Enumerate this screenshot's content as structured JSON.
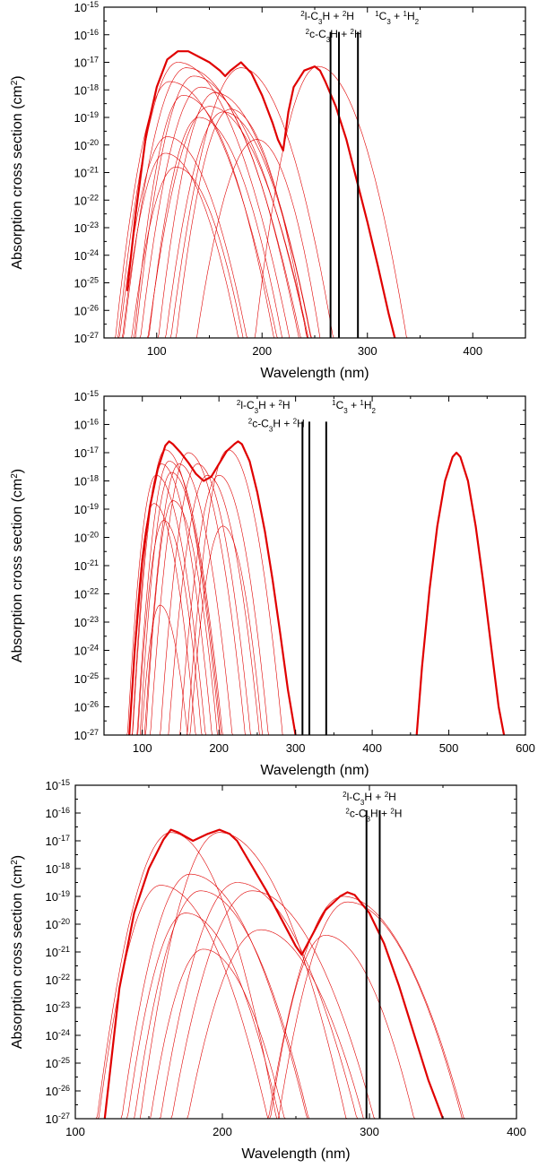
{
  "chart_data": [
    {
      "type": "line",
      "panel": 1,
      "title": "",
      "xlabel": "Wavelength (nm)",
      "ylabel": "Absorption cross section (cm2)",
      "ylabel_parts": {
        "main": "Absorption cross section (cm",
        "sup": "2",
        "tail": ")"
      },
      "xlim": [
        50,
        450
      ],
      "xticks": [
        100,
        200,
        300,
        400
      ],
      "ylim_log10": [
        -27,
        -15
      ],
      "yscale": "log",
      "color": "#e00000",
      "envelope": {
        "name": "total",
        "x": [
          72,
          80,
          90,
          100,
          110,
          120,
          130,
          140,
          150,
          160,
          165,
          170,
          180,
          190,
          200,
          210,
          215,
          220,
          225,
          230,
          240,
          250,
          255,
          260,
          270,
          280,
          290,
          300,
          310,
          320,
          326
        ],
        "log10": [
          -25.3,
          -22.5,
          -19.6,
          -17.9,
          -16.9,
          -16.6,
          -16.6,
          -16.8,
          -17.0,
          -17.3,
          -17.5,
          -17.3,
          -17.0,
          -17.4,
          -18.2,
          -19.2,
          -19.8,
          -20.2,
          -18.8,
          -17.9,
          -17.3,
          -17.15,
          -17.3,
          -17.7,
          -18.6,
          -19.8,
          -21.3,
          -22.8,
          -24.4,
          -26.1,
          -27
        ]
      },
      "components": [
        {
          "peak": 112,
          "logpeak": -17.7,
          "wl": 30,
          "wr": 60
        },
        {
          "peak": 120,
          "logpeak": -17.0,
          "wl": 32,
          "wr": 60
        },
        {
          "peak": 128,
          "logpeak": -17.2,
          "wl": 34,
          "wr": 62
        },
        {
          "peak": 135,
          "logpeak": -17.5,
          "wl": 32,
          "wr": 58
        },
        {
          "peak": 142,
          "logpeak": -17.9,
          "wl": 34,
          "wr": 60
        },
        {
          "peak": 150,
          "logpeak": -18.6,
          "wl": 36,
          "wr": 58
        },
        {
          "peak": 155,
          "logpeak": -18.1,
          "wl": 32,
          "wr": 55
        },
        {
          "peak": 163,
          "logpeak": -18.8,
          "wl": 34,
          "wr": 52
        },
        {
          "peak": 180,
          "logpeak": -17.2,
          "wl": 38,
          "wr": 50
        },
        {
          "peak": 110,
          "logpeak": -19.7,
          "wl": 30,
          "wr": 50
        },
        {
          "peak": 108,
          "logpeak": -20.3,
          "wl": 28,
          "wr": 48
        },
        {
          "peak": 118,
          "logpeak": -20.8,
          "wl": 30,
          "wr": 46
        },
        {
          "peak": 195,
          "logpeak": -19.8,
          "wl": 38,
          "wr": 40
        },
        {
          "peak": 170,
          "logpeak": -18.7,
          "wl": 32,
          "wr": 45
        },
        {
          "peak": 140,
          "logpeak": -19.0,
          "wl": 30,
          "wr": 50
        },
        {
          "peak": 125,
          "logpeak": -18.2,
          "wl": 28,
          "wr": 52
        },
        {
          "peak": 253,
          "logpeak": -17.15,
          "wl": 34,
          "wr": 48
        }
      ],
      "vlines": [
        265,
        273,
        291
      ],
      "annotations": [
        {
          "text_parts": [
            [
              "2",
              1
            ],
            [
              "l-C",
              0
            ],
            [
              "3",
              2
            ],
            [
              "H + ",
              0
            ],
            [
              "2",
              1
            ],
            [
              "H",
              0
            ]
          ],
          "label": "2l-C3H + 2H",
          "x": 262,
          "log10": -15.45
        },
        {
          "text_parts": [
            [
              "2",
              1
            ],
            [
              "c-C",
              0
            ],
            [
              "3",
              2
            ],
            [
              "H + ",
              0
            ],
            [
              "2",
              1
            ],
            [
              "H",
              0
            ]
          ],
          "label": "2c-C3H + 2H",
          "x": 268,
          "log10": -16.1
        },
        {
          "text_parts": [
            [
              "1",
              1
            ],
            [
              "C",
              0
            ],
            [
              "3",
              2
            ],
            [
              " + ",
              0
            ],
            [
              "1",
              1
            ],
            [
              "H",
              0
            ],
            [
              "2",
              2
            ]
          ],
          "label": "1C3 + 1H2",
          "x": 328,
          "log10": -15.45
        }
      ]
    },
    {
      "type": "line",
      "panel": 2,
      "title": "",
      "xlabel": "Wavelength (nm)",
      "ylabel": "Absorption cross section (cm2)",
      "ylabel_parts": {
        "main": "Absorption cross section (cm",
        "sup": "2",
        "tail": ")"
      },
      "xlim": [
        50,
        600
      ],
      "xticks": [
        100,
        200,
        300,
        400,
        500,
        600
      ],
      "ylim_log10": [
        -27,
        -15
      ],
      "yscale": "log",
      "color": "#e00000",
      "envelope": {
        "name": "total",
        "x": [
          83,
          90,
          100,
          110,
          120,
          130,
          135,
          140,
          150,
          160,
          170,
          180,
          190,
          200,
          210,
          220,
          225,
          230,
          240,
          250,
          260,
          270,
          280,
          290,
          300
        ],
        "log10": [
          -27,
          -24.0,
          -20.8,
          -18.9,
          -17.6,
          -16.75,
          -16.6,
          -16.7,
          -17.0,
          -17.35,
          -17.75,
          -18.0,
          -17.85,
          -17.4,
          -16.95,
          -16.7,
          -16.6,
          -16.7,
          -17.3,
          -18.4,
          -19.8,
          -21.5,
          -23.4,
          -25.4,
          -27
        ]
      },
      "envelope2": {
        "name": "visible band",
        "x": [
          458,
          465,
          475,
          485,
          495,
          505,
          510,
          515,
          525,
          535,
          545,
          555,
          565,
          572
        ],
        "log10": [
          -27,
          -24.6,
          -21.8,
          -19.6,
          -18.0,
          -17.15,
          -17.0,
          -17.15,
          -18.0,
          -19.6,
          -21.6,
          -23.8,
          -26.0,
          -27
        ]
      },
      "components": [
        {
          "peak": 118,
          "logpeak": -17.8,
          "wl": 22,
          "wr": 38
        },
        {
          "peak": 125,
          "logpeak": -17.4,
          "wl": 22,
          "wr": 38
        },
        {
          "peak": 130,
          "logpeak": -16.9,
          "wl": 24,
          "wr": 40
        },
        {
          "peak": 135,
          "logpeak": -17.3,
          "wl": 24,
          "wr": 40
        },
        {
          "peak": 138,
          "logpeak": -17.7,
          "wl": 24,
          "wr": 38
        },
        {
          "peak": 140,
          "logpeak": -18.7,
          "wl": 22,
          "wr": 36
        },
        {
          "peak": 148,
          "logpeak": -17.4,
          "wl": 26,
          "wr": 40
        },
        {
          "peak": 160,
          "logpeak": -17.0,
          "wl": 28,
          "wr": 42
        },
        {
          "peak": 172,
          "logpeak": -17.4,
          "wl": 28,
          "wr": 40
        },
        {
          "peak": 185,
          "logpeak": -17.8,
          "wl": 30,
          "wr": 40
        },
        {
          "peak": 200,
          "logpeak": -17.8,
          "wl": 30,
          "wr": 38
        },
        {
          "peak": 212,
          "logpeak": -16.9,
          "wl": 30,
          "wr": 40
        },
        {
          "peak": 205,
          "logpeak": -19.6,
          "wl": 28,
          "wr": 34
        },
        {
          "peak": 123,
          "logpeak": -22.4,
          "wl": 20,
          "wr": 30
        },
        {
          "peak": 128,
          "logpeak": -19.4,
          "wl": 22,
          "wr": 32
        },
        {
          "peak": 115,
          "logpeak": -18.8,
          "wl": 20,
          "wr": 34
        }
      ],
      "vlines": [
        309,
        318,
        340
      ],
      "annotations": [
        {
          "text_parts": [
            [
              "2",
              1
            ],
            [
              "l-C",
              0
            ],
            [
              "3",
              2
            ],
            [
              "H + ",
              0
            ],
            [
              "2",
              1
            ],
            [
              "H",
              0
            ]
          ],
          "label": "2l-C3H + 2H",
          "x": 258,
          "log10": -15.45
        },
        {
          "text_parts": [
            [
              "2",
              1
            ],
            [
              "c-C",
              0
            ],
            [
              "3",
              2
            ],
            [
              "H + ",
              0
            ],
            [
              "2",
              1
            ],
            [
              "H",
              0
            ]
          ],
          "label": "2c-C3H + 2H",
          "x": 275,
          "log10": -16.1
        },
        {
          "text_parts": [
            [
              "1",
              1
            ],
            [
              "C",
              0
            ],
            [
              "3",
              2
            ],
            [
              " + ",
              0
            ],
            [
              "1",
              1
            ],
            [
              "H",
              0
            ],
            [
              "2",
              2
            ]
          ],
          "label": "1C3 + 1H2",
          "x": 376,
          "log10": -15.45
        }
      ]
    },
    {
      "type": "line",
      "panel": 3,
      "title": "",
      "xlabel": "Wavelength (nm)",
      "ylabel": "Absorption cross section (cm2)",
      "ylabel_parts": {
        "main": "Absorption cross section (cm",
        "sup": "2",
        "tail": ")"
      },
      "xlim": [
        100,
        400
      ],
      "xticks": [
        100,
        200,
        300,
        400
      ],
      "ylim_log10": [
        -27,
        -15
      ],
      "yscale": "log",
      "color": "#e00000",
      "envelope": {
        "name": "total",
        "x": [
          120,
          130,
          140,
          150,
          160,
          165,
          170,
          180,
          190,
          198,
          205,
          210,
          220,
          230,
          240,
          250,
          254,
          258,
          265,
          270,
          280,
          285,
          290,
          300,
          310,
          320,
          330,
          340,
          350
        ],
        "log10": [
          -27,
          -22.3,
          -19.6,
          -18.0,
          -16.95,
          -16.6,
          -16.7,
          -17.0,
          -16.75,
          -16.6,
          -16.75,
          -17.0,
          -17.9,
          -18.8,
          -19.8,
          -20.8,
          -21.1,
          -20.7,
          -20.0,
          -19.5,
          -19.0,
          -18.85,
          -18.95,
          -19.6,
          -20.7,
          -22.2,
          -23.9,
          -25.6,
          -27
        ]
      },
      "components": [
        {
          "peak": 158,
          "logpeak": -18.6,
          "wl": 26,
          "wr": 45
        },
        {
          "peak": 165,
          "logpeak": -16.7,
          "wl": 28,
          "wr": 40
        },
        {
          "peak": 175,
          "logpeak": -19.6,
          "wl": 26,
          "wr": 42
        },
        {
          "peak": 178,
          "logpeak": -18.2,
          "wl": 28,
          "wr": 48
        },
        {
          "peak": 185,
          "logpeak": -18.8,
          "wl": 28,
          "wr": 46
        },
        {
          "peak": 187,
          "logpeak": -20.9,
          "wl": 26,
          "wr": 40
        },
        {
          "peak": 198,
          "logpeak": -16.7,
          "wl": 30,
          "wr": 48
        },
        {
          "peak": 210,
          "logpeak": -18.5,
          "wl": 32,
          "wr": 50
        },
        {
          "peak": 220,
          "logpeak": -18.8,
          "wl": 34,
          "wr": 52
        },
        {
          "peak": 226,
          "logpeak": -20.2,
          "wl": 34,
          "wr": 48
        },
        {
          "peak": 270,
          "logpeak": -20.4,
          "wl": 26,
          "wr": 42
        },
        {
          "peak": 282,
          "logpeak": -19.0,
          "wl": 32,
          "wr": 52
        },
        {
          "peak": 285,
          "logpeak": -19.2,
          "wl": 30,
          "wr": 50
        }
      ],
      "vlines": [
        298,
        307
      ],
      "annotations": [
        {
          "text_parts": [
            [
              "2",
              1
            ],
            [
              "l-C",
              0
            ],
            [
              "3",
              2
            ],
            [
              "H + ",
              0
            ],
            [
              "2",
              1
            ],
            [
              "H",
              0
            ]
          ],
          "label": "2l-C3H + 2H",
          "x": 300,
          "log10": -15.55
        },
        {
          "text_parts": [
            [
              "2",
              1
            ],
            [
              "c-C",
              0
            ],
            [
              "3",
              2
            ],
            [
              "H + ",
              0
            ],
            [
              "2",
              1
            ],
            [
              "H",
              0
            ]
          ],
          "label": "2c-C3H + 2H",
          "x": 303,
          "log10": -16.15
        }
      ]
    }
  ]
}
